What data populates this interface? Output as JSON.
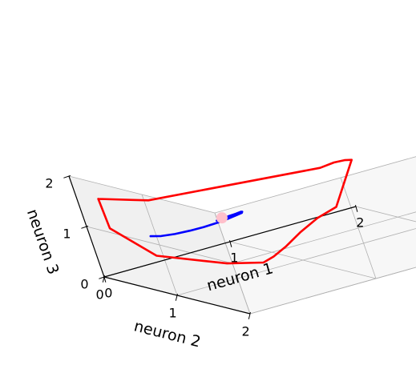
{
  "chart_data": {
    "type": "line3d",
    "axes": {
      "x": {
        "label": "neuron 1",
        "range": [
          0,
          2
        ],
        "ticks": [
          "0",
          "1",
          "2"
        ]
      },
      "y": {
        "label": "neuron 2",
        "range": [
          0,
          2
        ],
        "ticks": [
          "0",
          "1",
          "2"
        ]
      },
      "z": {
        "label": "neuron 3",
        "range": [
          0,
          2
        ],
        "ticks": [
          "0",
          "1",
          "2"
        ]
      }
    },
    "grid": true,
    "series": [
      {
        "color": "#0000ff",
        "style": "spiral",
        "points": [
          [
            0.62,
            0.7,
            0.94
          ],
          [
            0.69,
            0.64,
            0.9
          ],
          [
            0.75,
            0.64,
            0.92
          ],
          [
            0.78,
            0.69,
            0.96
          ],
          [
            0.79,
            0.76,
            1.02
          ],
          [
            0.76,
            0.84,
            1.07
          ],
          [
            0.72,
            0.91,
            1.1
          ],
          [
            0.65,
            0.96,
            1.12
          ],
          [
            0.57,
            0.99,
            1.12
          ],
          [
            0.48,
            0.99,
            1.1
          ],
          [
            0.38,
            0.96,
            1.07
          ],
          [
            0.3,
            0.91,
            1.04
          ],
          [
            0.22,
            0.83,
            1.0
          ],
          [
            0.16,
            0.74,
            0.97
          ],
          [
            0.13,
            0.64,
            0.95
          ]
        ]
      },
      {
        "color": "#ff0000",
        "style": "limit-cycle",
        "points": [
          [
            0.14,
            0.03,
            1.46
          ],
          [
            0.38,
            0.05,
            1.28
          ],
          [
            0.48,
            0.07,
            1.21
          ],
          [
            1.55,
            0.6,
            1.3
          ],
          [
            1.62,
            0.69,
            1.39
          ],
          [
            1.64,
            0.82,
            1.47
          ],
          [
            1.63,
            0.95,
            1.53
          ],
          [
            1.0,
            1.78,
            1.34
          ],
          [
            0.86,
            1.73,
            1.2
          ],
          [
            0.81,
            1.51,
            0.88
          ],
          [
            0.76,
            1.32,
            0.56
          ],
          [
            0.71,
            1.18,
            0.34
          ],
          [
            0.65,
            1.12,
            0.24
          ],
          [
            0.5,
            0.88,
            0.24
          ],
          [
            0.26,
            0.36,
            0.37
          ],
          [
            0.13,
            0.07,
            0.9
          ],
          [
            0.14,
            0.03,
            1.46
          ]
        ]
      }
    ],
    "markers": [
      {
        "color": "#ffc0cb",
        "shape": "circle",
        "x": 0.66,
        "y": 0.71,
        "z": 0.97
      }
    ]
  }
}
